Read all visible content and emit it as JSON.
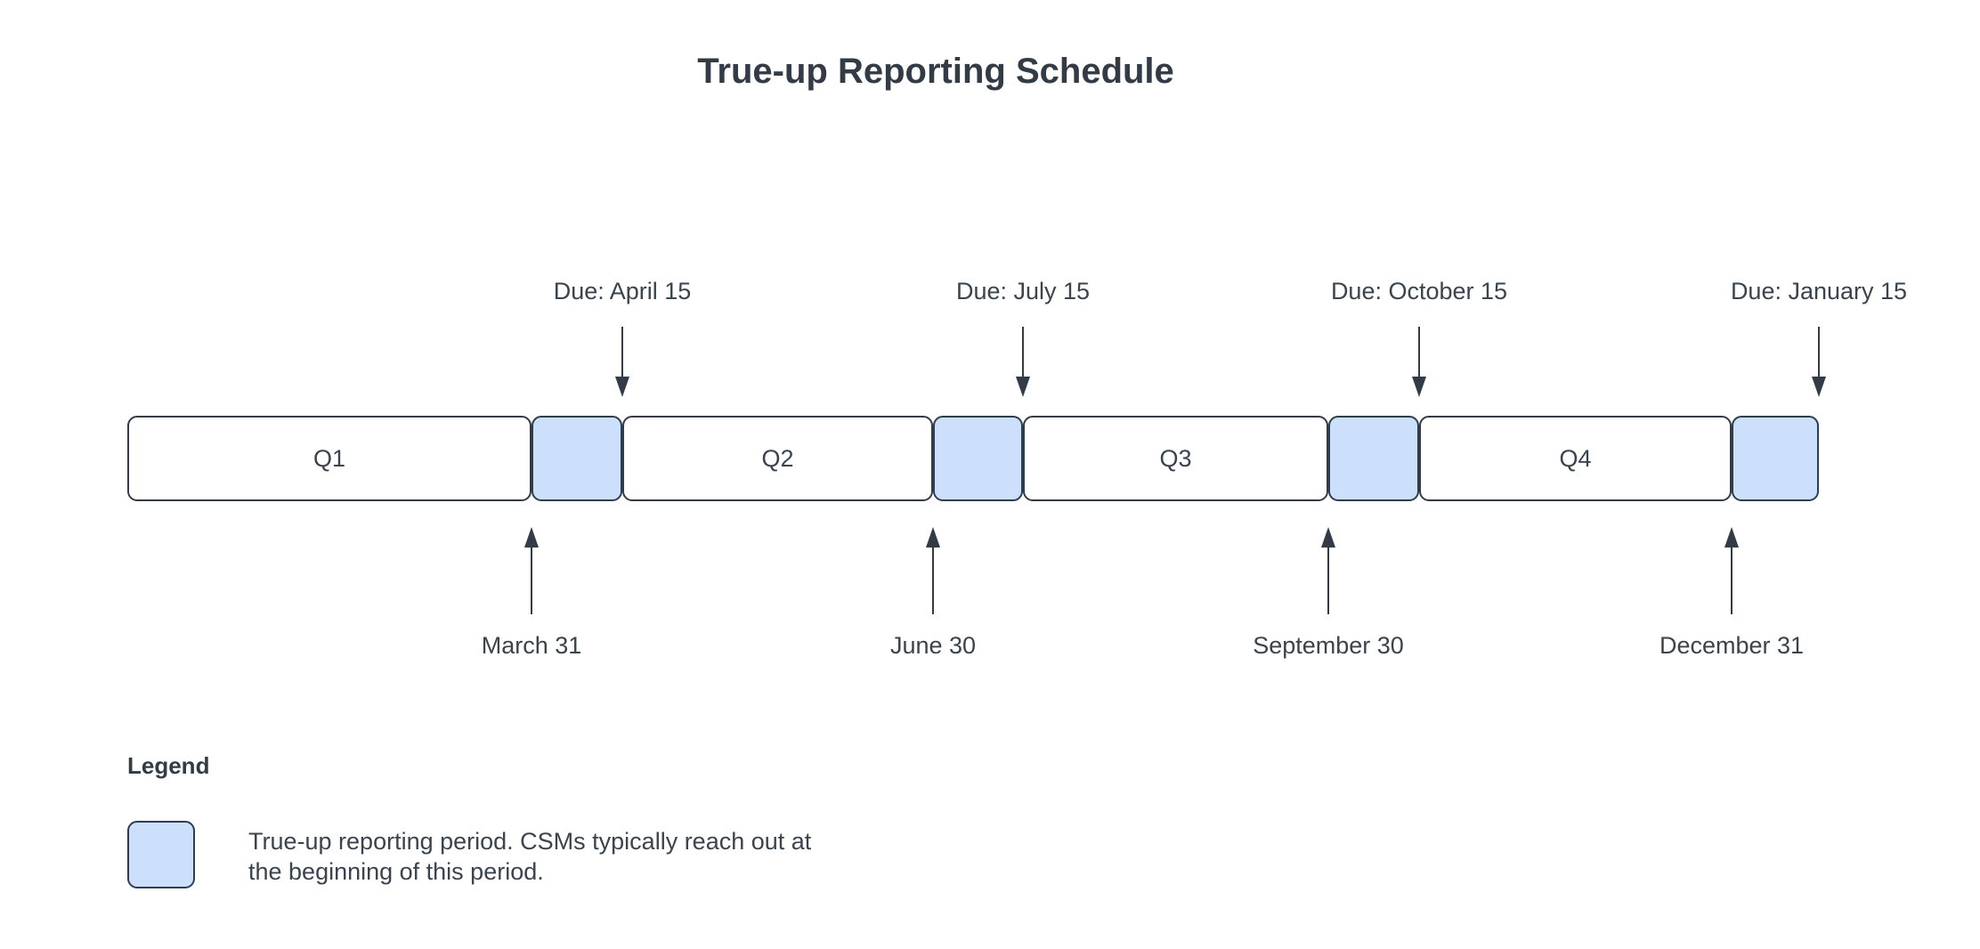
{
  "title": "True-up Reporting Schedule",
  "timeline": {
    "segments": [
      {
        "label": "Q1",
        "type": "quarter"
      },
      {
        "label": "",
        "type": "trueup"
      },
      {
        "label": "Q2",
        "type": "quarter"
      },
      {
        "label": "",
        "type": "trueup"
      },
      {
        "label": "Q3",
        "type": "quarter"
      },
      {
        "label": "",
        "type": "trueup"
      },
      {
        "label": "Q4",
        "type": "quarter"
      },
      {
        "label": "",
        "type": "trueup"
      }
    ],
    "due_markers": [
      {
        "label": "Due: April 15"
      },
      {
        "label": "Due: July 15"
      },
      {
        "label": "Due: October 15"
      },
      {
        "label": "Due: January 15"
      }
    ],
    "quarter_end_markers": [
      {
        "label": "March 31"
      },
      {
        "label": "June 30"
      },
      {
        "label": "September 30"
      },
      {
        "label": "December 31"
      }
    ]
  },
  "legend": {
    "heading": "Legend",
    "items": [
      {
        "swatch_color": "#cce0fb",
        "text": "True-up reporting period. CSMs typically reach out at the beginning of this period."
      }
    ]
  },
  "colors": {
    "background": "#ffffff",
    "stroke": "#333c46",
    "text": "#3a444e",
    "trueup_fill": "#cce0fb"
  }
}
